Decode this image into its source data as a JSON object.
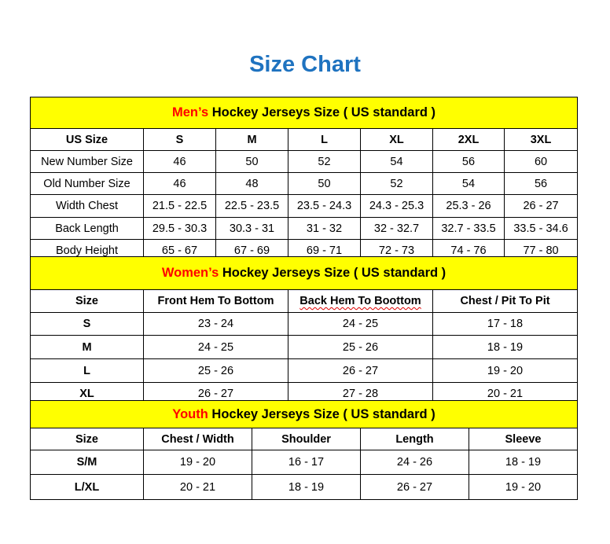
{
  "title": "Size Chart",
  "colors": {
    "title": "#1f73c0",
    "header_bg": "#ffff00",
    "accent": "#ff0000"
  },
  "men": {
    "header_accent": "Men’s",
    "header_rest": " Hockey Jerseys Size ( US standard )",
    "columns": [
      "US Size",
      "S",
      "M",
      "L",
      "XL",
      "2XL",
      "3XL"
    ],
    "rows": [
      [
        "New Number Size",
        "46",
        "50",
        "52",
        "54",
        "56",
        "60"
      ],
      [
        "Old Number Size",
        "46",
        "48",
        "50",
        "52",
        "54",
        "56"
      ],
      [
        "Width Chest",
        "21.5 - 22.5",
        "22.5 - 23.5",
        "23.5 - 24.3",
        "24.3 - 25.3",
        "25.3 - 26",
        "26 - 27"
      ],
      [
        "Back Length",
        "29.5 - 30.3",
        "30.3 - 31",
        "31 - 32",
        "32 - 32.7",
        "32.7 - 33.5",
        "33.5 - 34.6"
      ],
      [
        "Body Height",
        "65 - 67",
        "67 - 69",
        "69 - 71",
        "72 - 73",
        "74 - 76",
        "77 - 80"
      ]
    ]
  },
  "women": {
    "header_accent": "Women’s",
    "header_rest": " Hockey Jerseys Size ( US standard )",
    "columns": [
      "Size",
      "Front Hem To Bottom",
      "Back Hem To Boottom",
      "Chest / Pit To Pit"
    ],
    "rows": [
      [
        "S",
        "23 - 24",
        "24 - 25",
        "17 - 18"
      ],
      [
        "M",
        "24 - 25",
        "25 - 26",
        "18 - 19"
      ],
      [
        "L",
        "25 - 26",
        "26 - 27",
        "19 - 20"
      ],
      [
        "XL",
        "26 - 27",
        "27 - 28",
        "20 - 21"
      ]
    ]
  },
  "youth": {
    "header_accent": "Youth",
    "header_rest": " Hockey Jerseys Size ( US standard )",
    "columns": [
      "Size",
      "Chest / Width",
      "Shoulder",
      "Length",
      "Sleeve"
    ],
    "rows": [
      [
        "S/M",
        "19 - 20",
        "16 - 17",
        "24 - 26",
        "18 - 19"
      ],
      [
        "L/XL",
        "20 - 21",
        "18 - 19",
        "26 - 27",
        "19 - 20"
      ]
    ]
  }
}
